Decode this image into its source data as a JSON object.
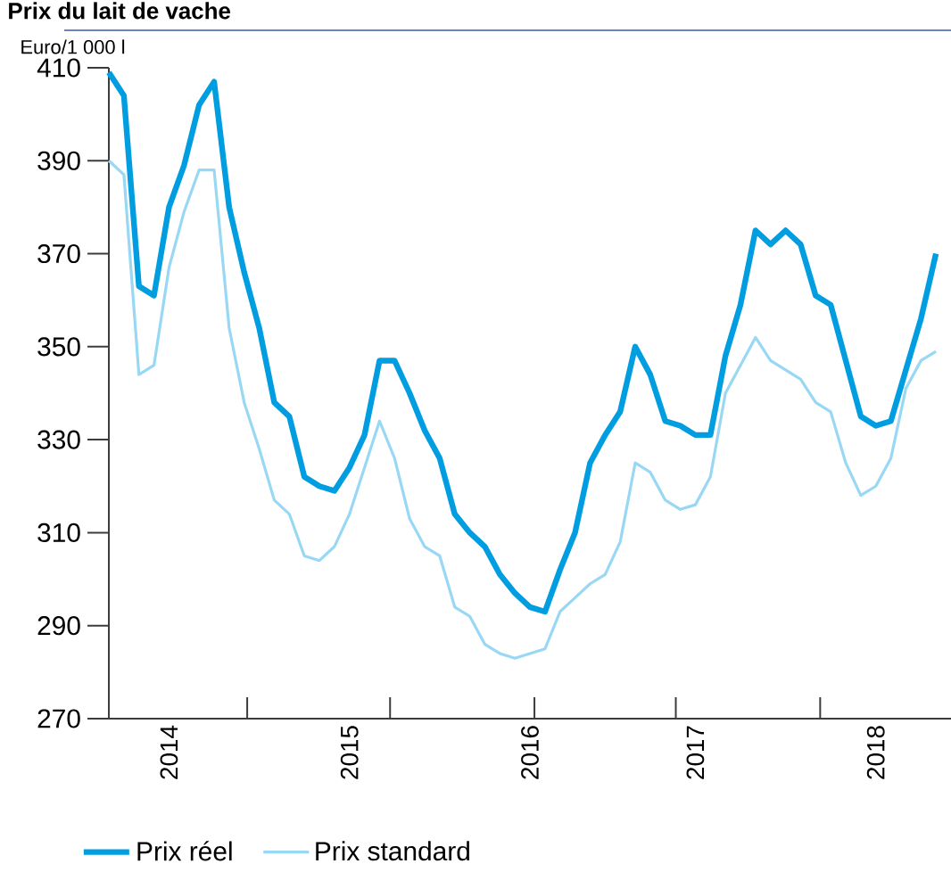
{
  "chart_data": {
    "type": "line",
    "title": "Prix du lait de vache",
    "ylabel": "Euro/1 000 l",
    "x": [
      "2014-01",
      "2014-02",
      "2014-03",
      "2014-04",
      "2014-05",
      "2014-06",
      "2014-07",
      "2014-08",
      "2014-09",
      "2014-10",
      "2014-11",
      "2014-12",
      "2015-01",
      "2015-02",
      "2015-03",
      "2015-04",
      "2015-05",
      "2015-06",
      "2015-07",
      "2015-08",
      "2015-09",
      "2015-10",
      "2015-11",
      "2015-12",
      "2016-01",
      "2016-02",
      "2016-03",
      "2016-04",
      "2016-05",
      "2016-06",
      "2016-07",
      "2016-08",
      "2016-09",
      "2016-10",
      "2016-11",
      "2016-12",
      "2017-01",
      "2017-02",
      "2017-03",
      "2017-04",
      "2017-05",
      "2017-06",
      "2017-07",
      "2017-08",
      "2017-09",
      "2017-10",
      "2017-11",
      "2017-12",
      "2018-01",
      "2018-02",
      "2018-03",
      "2018-04",
      "2018-05",
      "2018-06",
      "2018-07",
      "2018-08"
    ],
    "series": [
      {
        "name": "Prix réel",
        "color": "#009ee0",
        "values": [
          409,
          404,
          363,
          361,
          380,
          389,
          402,
          407,
          380,
          366,
          354,
          338,
          335,
          322,
          320,
          319,
          324,
          331,
          347,
          347,
          340,
          332,
          326,
          314,
          310,
          307,
          301,
          297,
          294,
          293,
          302,
          310,
          325,
          331,
          336,
          350,
          344,
          334,
          333,
          331,
          331,
          348,
          359,
          375,
          372,
          375,
          372,
          361,
          359,
          347,
          335,
          333,
          334,
          345,
          356,
          370
        ]
      },
      {
        "name": "Prix standard",
        "color": "#99d8f5",
        "values": [
          390,
          387,
          344,
          346,
          367,
          379,
          388,
          388,
          354,
          338,
          328,
          317,
          314,
          305,
          304,
          307,
          314,
          324,
          334,
          326,
          313,
          307,
          305,
          294,
          292,
          286,
          284,
          283,
          284,
          285,
          293,
          296,
          299,
          301,
          308,
          325,
          323,
          317,
          315,
          316,
          322,
          340,
          346,
          352,
          347,
          345,
          343,
          338,
          336,
          325,
          318,
          320,
          326,
          341,
          347,
          349
        ]
      }
    ],
    "xlim": [
      "2014-01",
      "2018-09"
    ],
    "xticks": [
      {
        "value": "2014-05",
        "label": "2014"
      },
      {
        "value": "2015-05",
        "label": "2015"
      },
      {
        "value": "2016-05",
        "label": "2016"
      },
      {
        "value": "2017-04",
        "label": "2017"
      },
      {
        "value": "2018-04",
        "label": "2018"
      },
      {
        "value": "2014-10-07",
        "label": null
      },
      {
        "value": "2015-07-22",
        "label": null
      },
      {
        "value": "2016-05-10",
        "label": null
      },
      {
        "value": "2017-02-22",
        "label": null
      },
      {
        "value": "2017-12-10",
        "label": null
      }
    ],
    "ylim": [
      270,
      410
    ],
    "yticks": [
      270,
      290,
      310,
      330,
      350,
      370,
      390,
      410
    ],
    "grid": false,
    "legend": "bottom",
    "marker": "none",
    "line_style": "solid"
  }
}
